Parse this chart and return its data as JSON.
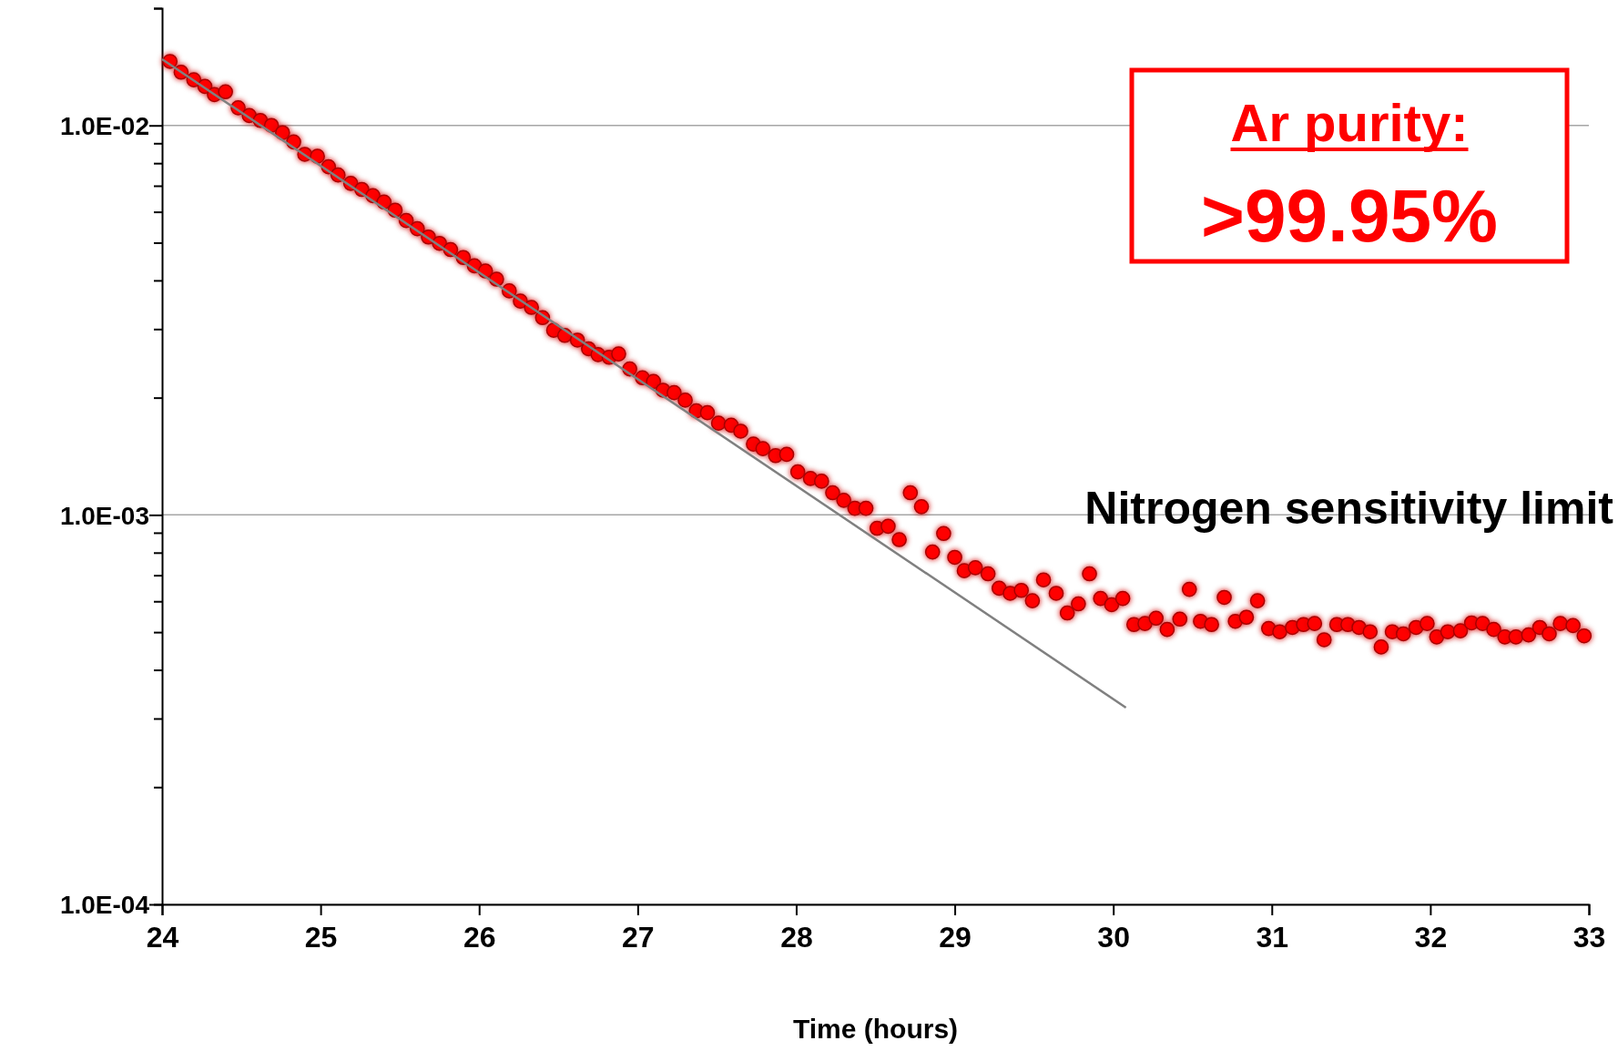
{
  "chart_data": {
    "type": "scatter",
    "xlabel": "Time (hours)",
    "log": "y",
    "grid": "y",
    "xlim": [
      24,
      33
    ],
    "xticks": [
      24,
      25,
      26,
      27,
      28,
      29,
      30,
      31,
      32,
      33
    ],
    "ylim": [
      0.0001,
      0.02
    ],
    "yticks": [
      {
        "value": 0.0001,
        "label": "1.0E-04"
      },
      {
        "value": 0.0002,
        "label": null
      },
      {
        "value": 0.0003,
        "label": null
      },
      {
        "value": 0.0004,
        "label": null
      },
      {
        "value": 0.0005,
        "label": null
      },
      {
        "value": 0.0006,
        "label": null
      },
      {
        "value": 0.0007,
        "label": null
      },
      {
        "value": 0.0008,
        "label": null
      },
      {
        "value": 0.0009,
        "label": null
      },
      {
        "value": 0.001,
        "label": "1.0E-03"
      },
      {
        "value": 0.002,
        "label": null
      },
      {
        "value": 0.003,
        "label": null
      },
      {
        "value": 0.004,
        "label": null
      },
      {
        "value": 0.005,
        "label": null
      },
      {
        "value": 0.006,
        "label": null
      },
      {
        "value": 0.007,
        "label": null
      },
      {
        "value": 0.008,
        "label": null
      },
      {
        "value": 0.009,
        "label": null
      },
      {
        "value": 0.01,
        "label": "1.0E-02"
      },
      {
        "value": 0.02,
        "label": null
      }
    ],
    "series": [
      {
        "color": "#ff0000",
        "marker": "circle",
        "x": [
          24.05,
          24.12,
          24.2,
          24.27,
          24.33,
          24.4,
          24.48,
          24.55,
          24.62,
          24.69,
          24.76,
          24.83,
          24.9,
          24.98,
          25.05,
          25.11,
          25.19,
          25.26,
          25.33,
          25.4,
          25.47,
          25.54,
          25.61,
          25.68,
          25.75,
          25.82,
          25.9,
          25.97,
          26.04,
          26.11,
          26.19,
          26.26,
          26.33,
          26.4,
          26.47,
          26.54,
          26.62,
          26.69,
          26.75,
          26.82,
          26.88,
          26.95,
          27.03,
          27.1,
          27.16,
          27.23,
          27.3,
          27.37,
          27.44,
          27.51,
          27.59,
          27.65,
          27.73,
          27.79,
          27.87,
          27.94,
          28.01,
          28.09,
          28.16,
          28.23,
          28.3,
          28.37,
          28.44,
          28.51,
          28.58,
          28.65,
          28.72,
          28.79,
          28.86,
          28.93,
          29.0,
          29.06,
          29.13,
          29.21,
          29.28,
          29.35,
          29.42,
          29.49,
          29.56,
          29.64,
          29.71,
          29.78,
          29.85,
          29.92,
          29.99,
          30.06,
          30.13,
          30.2,
          30.27,
          30.34,
          30.42,
          30.48,
          30.55,
          30.62,
          30.7,
          30.77,
          30.84,
          30.91,
          30.98,
          31.05,
          31.13,
          31.2,
          31.27,
          31.33,
          31.41,
          31.48,
          31.55,
          31.62,
          31.69,
          31.76,
          31.83,
          31.91,
          31.98,
          32.04,
          32.11,
          32.19,
          32.26,
          32.33,
          32.4,
          32.47,
          32.54,
          32.62,
          32.69,
          32.75,
          32.82,
          32.9,
          32.97
        ],
        "values": [
          0.0146,
          0.0137,
          0.0131,
          0.0126,
          0.012,
          0.0122,
          0.0111,
          0.0106,
          0.0103,
          0.01,
          0.00958,
          0.00907,
          0.00843,
          0.00833,
          0.00783,
          0.00746,
          0.0071,
          0.00685,
          0.0066,
          0.00636,
          0.00606,
          0.0057,
          0.00543,
          0.00517,
          0.00498,
          0.0048,
          0.00458,
          0.00436,
          0.00423,
          0.00403,
          0.00376,
          0.00354,
          0.00341,
          0.00321,
          0.00298,
          0.00289,
          0.00281,
          0.00267,
          0.00258,
          0.00254,
          0.00259,
          0.00237,
          0.00225,
          0.0022,
          0.00209,
          0.00206,
          0.00197,
          0.00185,
          0.00183,
          0.00172,
          0.0017,
          0.00164,
          0.00152,
          0.00148,
          0.00142,
          0.00143,
          0.00129,
          0.00124,
          0.00122,
          0.00114,
          0.00109,
          0.00104,
          0.00104,
          0.000924,
          0.000935,
          0.000864,
          0.00114,
          0.00105,
          0.000803,
          0.000896,
          0.000778,
          0.000719,
          0.000732,
          0.000706,
          0.000648,
          0.000629,
          0.00064,
          0.000602,
          0.000681,
          0.000629,
          0.00056,
          0.000591,
          0.000706,
          0.00061,
          0.000588,
          0.00061,
          0.000523,
          0.000526,
          0.000543,
          0.000508,
          0.00054,
          0.000644,
          0.000533,
          0.000523,
          0.000614,
          0.000533,
          0.000546,
          0.000602,
          0.000511,
          0.000501,
          0.000514,
          0.000523,
          0.000526,
          0.000478,
          0.000523,
          0.000523,
          0.000514,
          0.000501,
          0.000458,
          0.000501,
          0.000495,
          0.000514,
          0.000526,
          0.000486,
          0.000501,
          0.000504,
          0.000528,
          0.000526,
          0.000508,
          0.000486,
          0.000486,
          0.000492,
          0.000514,
          0.000495,
          0.000526,
          0.00052,
          0.000489
        ]
      },
      {
        "type": "line",
        "marker": "none",
        "color": "#808080",
        "x": [
          24,
          30.08
        ],
        "values": [
          0.0148,
          0.00032
        ]
      }
    ],
    "annotations": [
      "Ar purity:",
      ">99.95%",
      "Nitrogen sensitivity limit"
    ]
  }
}
